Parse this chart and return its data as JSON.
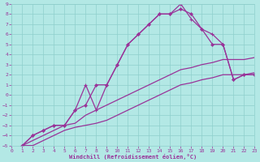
{
  "xlabel": "Windchill (Refroidissement éolien,°C)",
  "xlim": [
    0,
    23
  ],
  "ylim": [
    -5,
    9
  ],
  "xticks": [
    0,
    1,
    2,
    3,
    4,
    5,
    6,
    7,
    8,
    9,
    10,
    11,
    12,
    13,
    14,
    15,
    16,
    17,
    18,
    19,
    20,
    21,
    22,
    23
  ],
  "yticks": [
    -5,
    -4,
    -3,
    -2,
    -1,
    0,
    1,
    2,
    3,
    4,
    5,
    6,
    7,
    8,
    9
  ],
  "background_color": "#b3e8e5",
  "grid_color": "#8ecfcc",
  "line_color": "#993399",
  "lines": [
    {
      "x": [
        1,
        2,
        3,
        4,
        5,
        6,
        7,
        8,
        9,
        10,
        11,
        12,
        13,
        14,
        15,
        16,
        17,
        18,
        19,
        20,
        21,
        22,
        23
      ],
      "y": [
        -5,
        -5,
        -4.5,
        -4,
        -3.5,
        -3.2,
        -3,
        -2.8,
        -2.5,
        -2,
        -1.5,
        -1,
        -0.5,
        0,
        0.5,
        1,
        1.2,
        1.5,
        1.7,
        2,
        2,
        2,
        2.2
      ],
      "marker": "none",
      "lw": 0.9
    },
    {
      "x": [
        1,
        2,
        3,
        4,
        5,
        6,
        7,
        8,
        9,
        10,
        11,
        12,
        13,
        14,
        15,
        16,
        17,
        18,
        19,
        20,
        21,
        22,
        23
      ],
      "y": [
        -5,
        -4.5,
        -4,
        -3.5,
        -3,
        -2.8,
        -2,
        -1.5,
        -1,
        -0.5,
        0,
        0.5,
        1,
        1.5,
        2,
        2.5,
        2.7,
        3,
        3.2,
        3.5,
        3.5,
        3.5,
        3.7
      ],
      "marker": "none",
      "lw": 0.9
    },
    {
      "x": [
        1,
        2,
        3,
        4,
        5,
        6,
        7,
        8,
        9,
        10,
        11,
        12,
        13,
        14,
        15,
        16,
        17,
        18,
        19,
        20,
        21,
        22,
        23
      ],
      "y": [
        -5,
        -4,
        -3.5,
        -3,
        -3,
        -1.5,
        1,
        -1.5,
        1,
        3,
        5,
        6,
        7,
        8,
        8,
        9,
        7.5,
        6.5,
        6,
        5,
        1.5,
        2,
        2
      ],
      "marker": "+",
      "lw": 0.9
    },
    {
      "x": [
        1,
        2,
        3,
        4,
        5,
        6,
        7,
        8,
        9,
        10,
        11,
        12,
        13,
        14,
        15,
        16,
        17,
        18,
        19,
        20,
        21,
        22,
        23
      ],
      "y": [
        -5,
        -4,
        -3.5,
        -3,
        -3,
        -1.5,
        -1,
        1,
        1,
        3,
        5,
        6,
        7,
        8,
        8,
        8.5,
        8,
        6.5,
        5,
        5,
        1.5,
        2,
        2
      ],
      "marker": "D",
      "lw": 0.9
    }
  ]
}
